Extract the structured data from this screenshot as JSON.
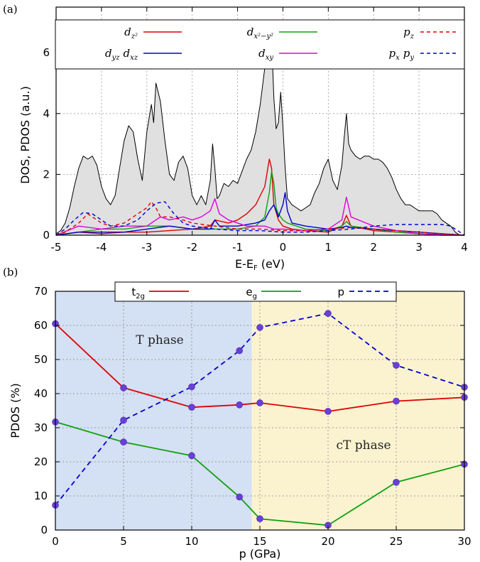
{
  "chart_data": [
    {
      "type": "line",
      "panel_label": "(a)",
      "xlabel": "E-Eᴅ",
      "xlabel_main": "E-E",
      "xlabel_sub": "F",
      "xlabel_unit": " (eV)",
      "ylabel": "DOS, PDOS (a.u.)",
      "xlim": [
        -5,
        4
      ],
      "ylim": [
        0,
        7.5
      ],
      "xticks": [
        -5,
        -4,
        -3,
        -2,
        -1,
        0,
        1,
        2,
        3,
        4
      ],
      "yticks": [
        0,
        2,
        4,
        6
      ],
      "grid": true,
      "legend_position": "top",
      "total_dos_fill": "#e0e0e0",
      "series": [
        {
          "name": "DOS",
          "role": "total",
          "color": "#000000",
          "style": "solid",
          "x": [
            -5.0,
            -4.9,
            -4.8,
            -4.7,
            -4.6,
            -4.5,
            -4.4,
            -4.3,
            -4.2,
            -4.1,
            -4.0,
            -3.9,
            -3.8,
            -3.7,
            -3.6,
            -3.5,
            -3.4,
            -3.3,
            -3.2,
            -3.1,
            -3.0,
            -2.9,
            -2.85,
            -2.8,
            -2.7,
            -2.6,
            -2.5,
            -2.4,
            -2.3,
            -2.2,
            -2.1,
            -2.0,
            -1.9,
            -1.8,
            -1.7,
            -1.6,
            -1.55,
            -1.5,
            -1.45,
            -1.4,
            -1.3,
            -1.2,
            -1.1,
            -1.0,
            -0.9,
            -0.8,
            -0.7,
            -0.6,
            -0.5,
            -0.4,
            -0.3,
            -0.25,
            -0.2,
            -0.15,
            -0.1,
            -0.05,
            0.0,
            0.05,
            0.1,
            0.2,
            0.3,
            0.4,
            0.5,
            0.6,
            0.7,
            0.8,
            0.9,
            1.0,
            1.1,
            1.2,
            1.3,
            1.35,
            1.4,
            1.45,
            1.5,
            1.6,
            1.7,
            1.8,
            1.9,
            2.0,
            2.1,
            2.2,
            2.3,
            2.4,
            2.5,
            2.6,
            2.7,
            2.8,
            2.9,
            3.0,
            3.1,
            3.2,
            3.3,
            3.4,
            3.5,
            3.6,
            3.7,
            3.8,
            3.9,
            4.0
          ],
          "y": [
            0.05,
            0.15,
            0.4,
            0.9,
            1.6,
            2.2,
            2.6,
            2.5,
            2.6,
            2.3,
            1.6,
            1.2,
            1.0,
            1.3,
            2.2,
            3.1,
            3.6,
            3.4,
            2.5,
            1.8,
            3.4,
            4.3,
            3.7,
            5.0,
            4.4,
            3.1,
            2.0,
            1.8,
            2.4,
            2.6,
            2.2,
            1.3,
            1.0,
            1.3,
            1.0,
            1.8,
            3.0,
            2.2,
            1.2,
            1.3,
            1.7,
            1.6,
            1.8,
            1.7,
            2.1,
            2.5,
            2.8,
            3.4,
            4.3,
            5.5,
            6.9,
            6.5,
            4.5,
            3.5,
            3.7,
            4.7,
            3.6,
            2.2,
            1.2,
            1.0,
            0.9,
            0.8,
            0.9,
            1.0,
            1.4,
            1.7,
            2.2,
            2.5,
            1.8,
            1.5,
            2.3,
            3.2,
            4.0,
            3.0,
            2.8,
            2.6,
            2.5,
            2.6,
            2.6,
            2.5,
            2.5,
            2.4,
            2.2,
            1.9,
            1.5,
            1.2,
            1.0,
            1.0,
            0.9,
            0.8,
            0.8,
            0.8,
            0.8,
            0.7,
            0.5,
            0.4,
            0.3,
            0.1,
            0.0,
            0.0
          ]
        },
        {
          "name": "d",
          "sub": "z²",
          "color": "#e00000",
          "style": "solid",
          "x": [
            -5.0,
            -4.5,
            -4.0,
            -3.5,
            -3.0,
            -2.5,
            -2.0,
            -1.6,
            -1.5,
            -1.2,
            -1.0,
            -0.8,
            -0.6,
            -0.4,
            -0.3,
            -0.25,
            -0.2,
            -0.1,
            0.0,
            0.2,
            0.5,
            1.0,
            1.3,
            1.4,
            1.5,
            2.0,
            2.5,
            3.0,
            3.5,
            4.0
          ],
          "y": [
            0.0,
            0.1,
            0.05,
            0.1,
            0.1,
            0.15,
            0.2,
            0.3,
            0.5,
            0.4,
            0.5,
            0.7,
            1.0,
            1.6,
            2.5,
            2.2,
            1.0,
            0.5,
            0.3,
            0.2,
            0.15,
            0.1,
            0.3,
            0.65,
            0.3,
            0.15,
            0.1,
            0.05,
            0.0,
            0.0
          ]
        },
        {
          "name": "d",
          "sub": "x²−y²",
          "color": "#10a010",
          "style": "solid",
          "x": [
            -5.0,
            -4.5,
            -4.0,
            -3.5,
            -3.0,
            -2.5,
            -2.0,
            -1.5,
            -1.0,
            -0.6,
            -0.4,
            -0.3,
            -0.25,
            -0.2,
            -0.15,
            -0.1,
            0.0,
            0.1,
            0.3,
            0.5,
            1.0,
            1.3,
            1.4,
            1.5,
            2.0,
            2.5,
            3.0,
            4.0
          ],
          "y": [
            0.0,
            0.1,
            0.2,
            0.2,
            0.3,
            0.3,
            0.2,
            0.2,
            0.2,
            0.3,
            0.6,
            1.4,
            2.1,
            1.7,
            0.9,
            0.7,
            0.5,
            0.4,
            0.3,
            0.2,
            0.15,
            0.3,
            0.45,
            0.3,
            0.2,
            0.1,
            0.05,
            0.0
          ]
        },
        {
          "name": "d",
          "sub": "yz",
          "sub2": "xz",
          "color": "#0000d0",
          "style": "solid",
          "x": [
            -5.0,
            -4.5,
            -4.0,
            -3.5,
            -3.0,
            -2.5,
            -2.0,
            -1.6,
            -1.5,
            -1.4,
            -1.0,
            -0.6,
            -0.4,
            -0.3,
            -0.2,
            -0.1,
            0.0,
            0.05,
            0.1,
            0.2,
            0.5,
            1.0,
            1.3,
            1.4,
            1.5,
            2.0,
            2.5,
            3.0,
            3.5,
            4.0
          ],
          "y": [
            0.0,
            0.1,
            0.1,
            0.1,
            0.2,
            0.3,
            0.2,
            0.2,
            0.5,
            0.3,
            0.3,
            0.4,
            0.5,
            0.8,
            1.0,
            0.6,
            1.0,
            1.4,
            0.8,
            0.4,
            0.3,
            0.2,
            0.25,
            0.3,
            0.25,
            0.2,
            0.15,
            0.1,
            0.05,
            0.0
          ]
        },
        {
          "name": "d",
          "sub": "xy",
          "color": "#e000e0",
          "style": "solid",
          "x": [
            -5.0,
            -4.5,
            -4.0,
            -3.5,
            -3.0,
            -2.7,
            -2.5,
            -2.2,
            -2.0,
            -1.8,
            -1.6,
            -1.5,
            -1.4,
            -1.2,
            -1.0,
            -0.8,
            -0.6,
            -0.4,
            -0.2,
            0.0,
            0.5,
            1.0,
            1.3,
            1.4,
            1.5,
            2.0,
            2.5,
            3.0,
            4.0
          ],
          "y": [
            0.0,
            0.3,
            0.2,
            0.3,
            0.3,
            0.6,
            0.5,
            0.6,
            0.5,
            0.6,
            0.8,
            1.2,
            0.7,
            0.5,
            0.4,
            0.3,
            0.3,
            0.3,
            0.2,
            0.2,
            0.15,
            0.2,
            0.5,
            1.25,
            0.6,
            0.3,
            0.15,
            0.05,
            0.0
          ]
        },
        {
          "name": "p",
          "sub": "z",
          "color": "#e00000",
          "style": "dashed",
          "x": [
            -5.0,
            -4.8,
            -4.5,
            -4.3,
            -4.0,
            -3.8,
            -3.5,
            -3.2,
            -3.0,
            -2.9,
            -2.8,
            -2.7,
            -2.5,
            -2.2,
            -2.0,
            -1.5,
            -1.0,
            -0.5,
            0.0,
            0.5,
            1.0,
            1.5,
            2.0,
            2.5,
            3.0,
            3.5,
            4.0
          ],
          "y": [
            0.0,
            0.1,
            0.4,
            0.7,
            0.4,
            0.3,
            0.4,
            0.7,
            0.9,
            1.1,
            0.9,
            0.6,
            0.6,
            0.5,
            0.4,
            0.3,
            0.2,
            0.2,
            0.15,
            0.15,
            0.2,
            0.25,
            0.2,
            0.15,
            0.1,
            0.05,
            0.0
          ]
        },
        {
          "name": "p",
          "sub": "x",
          "sub2": "y",
          "color": "#0000d0",
          "style": "dashed",
          "x": [
            -5.0,
            -4.8,
            -4.6,
            -4.4,
            -4.2,
            -4.0,
            -3.8,
            -3.5,
            -3.2,
            -3.0,
            -2.8,
            -2.6,
            -2.4,
            -2.2,
            -2.0,
            -1.5,
            -1.0,
            -0.5,
            0.0,
            0.5,
            1.0,
            1.5,
            2.0,
            2.5,
            3.0,
            3.5,
            3.7,
            3.9,
            4.0
          ],
          "y": [
            0.0,
            0.2,
            0.5,
            0.75,
            0.7,
            0.5,
            0.3,
            0.3,
            0.5,
            0.8,
            1.05,
            1.1,
            0.7,
            0.4,
            0.3,
            0.2,
            0.15,
            0.15,
            0.1,
            0.1,
            0.15,
            0.2,
            0.3,
            0.35,
            0.35,
            0.35,
            0.3,
            0.1,
            0.0
          ]
        }
      ]
    },
    {
      "type": "line",
      "panel_label": "(b)",
      "xlabel": "p (GPa)",
      "ylabel": "PDOS (%)",
      "xlim": [
        0,
        30
      ],
      "ylim": [
        0,
        70
      ],
      "xticks": [
        0,
        5,
        10,
        15,
        20,
        25,
        30
      ],
      "yticks": [
        0,
        10,
        20,
        30,
        40,
        50,
        60,
        70
      ],
      "grid": true,
      "legend_position": "top",
      "regions": [
        {
          "label": "T phase",
          "x_range": [
            0,
            14.4
          ],
          "color": "#d4e0f3"
        },
        {
          "label": "cT phase",
          "x_range": [
            14.4,
            30
          ],
          "color": "#fbf3d0"
        }
      ],
      "marker_color": "#6a3fd8",
      "series": [
        {
          "name": "t",
          "sub": "2g",
          "color": "#e00000",
          "style": "solid",
          "x": [
            0,
            5,
            10,
            13.5,
            15,
            20,
            25,
            30
          ],
          "y": [
            60.5,
            41.7,
            36.0,
            36.7,
            37.3,
            34.8,
            37.8,
            38.9
          ]
        },
        {
          "name": "e",
          "sub": "g",
          "color": "#10a010",
          "style": "solid",
          "x": [
            0,
            5,
            10,
            13.5,
            15,
            20,
            25,
            30
          ],
          "y": [
            31.7,
            25.8,
            21.8,
            9.7,
            3.3,
            1.4,
            14.0,
            19.3
          ]
        },
        {
          "name": "p",
          "color": "#0000d0",
          "style": "dashed",
          "x": [
            0,
            5,
            10,
            13.5,
            15,
            20,
            25,
            30
          ],
          "y": [
            7.3,
            32.2,
            42.0,
            52.6,
            59.4,
            63.5,
            48.3,
            41.9
          ]
        }
      ]
    }
  ]
}
